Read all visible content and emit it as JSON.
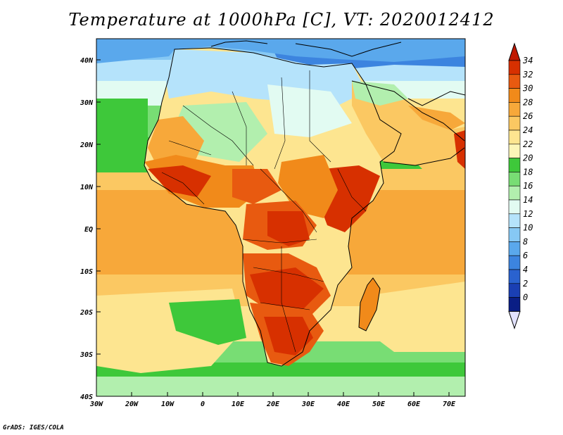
{
  "title": "Temperature at 1000hPa [C], VT: 2020012412",
  "credit": "GrADS: IGES/COLA",
  "map": {
    "y_labels": [
      "40N",
      "30N",
      "20N",
      "10N",
      "EQ",
      "10S",
      "20S",
      "30S",
      "40S"
    ],
    "x_labels": [
      "30W",
      "20W",
      "10W",
      "0",
      "10E",
      "20E",
      "30E",
      "40E",
      "50E",
      "60E",
      "70E"
    ]
  },
  "colorbar": {
    "labels": [
      "34",
      "32",
      "30",
      "28",
      "26",
      "24",
      "22",
      "20",
      "18",
      "16",
      "14",
      "12",
      "10",
      "8",
      "6",
      "4",
      "2",
      "0"
    ],
    "colors": [
      "#d73000",
      "#e85a10",
      "#f18a1a",
      "#f7a83a",
      "#fbc862",
      "#fde590",
      "#fcf6b8",
      "#3ec83a",
      "#78dd74",
      "#b2efae",
      "#e2fbf2",
      "#b5e3fb",
      "#86c8f4",
      "#5aa8ec",
      "#3c84df",
      "#2a62cf",
      "#1a3fb3",
      "#0a1e85"
    ],
    "top_arrow_color": "#c01800",
    "bottom_arrow_color": "#e2e2ff"
  }
}
